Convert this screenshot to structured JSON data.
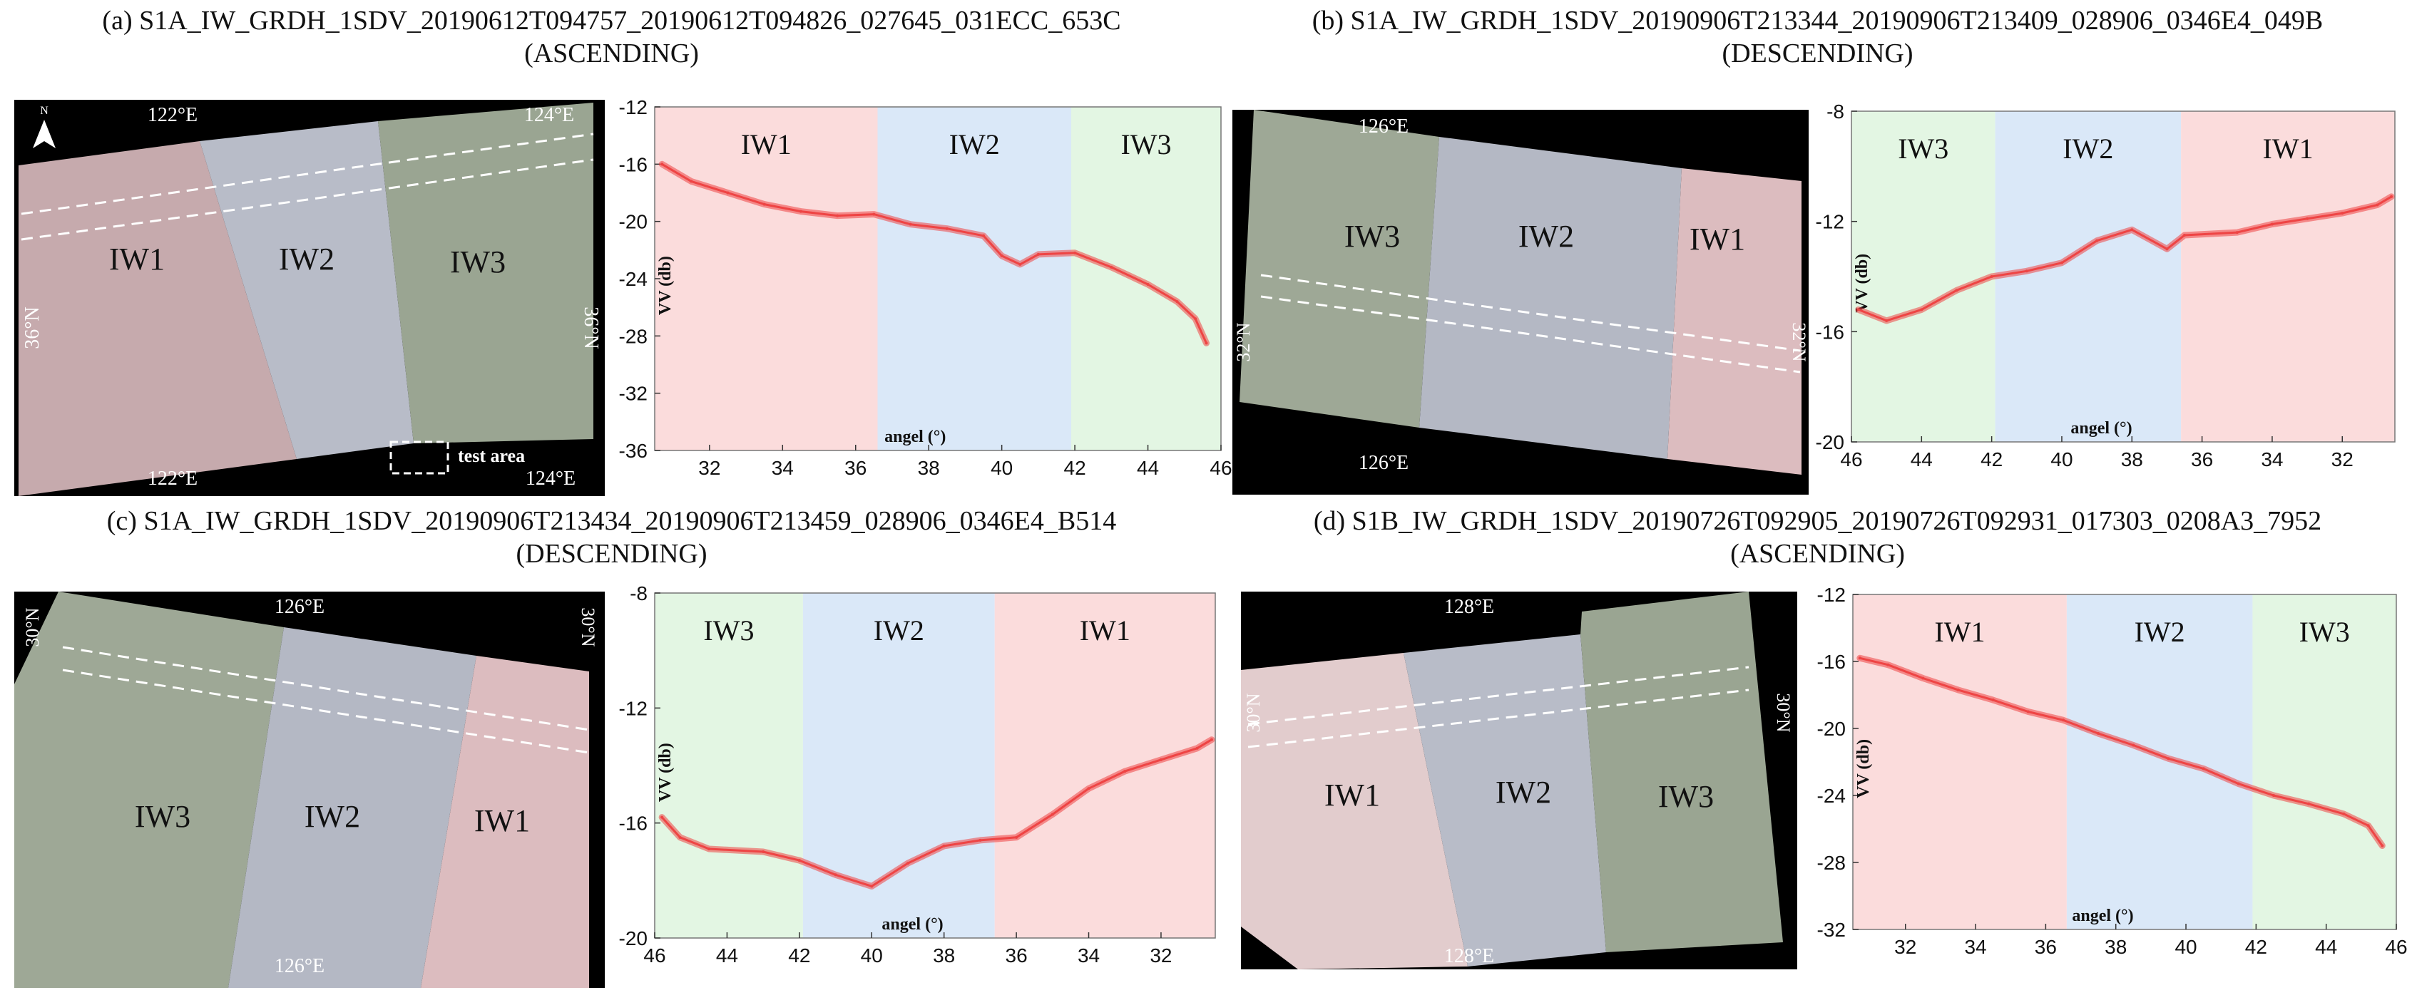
{
  "panels": [
    {
      "id": "a",
      "title_line1": "(a) S1A_IW_GRDH_1SDV_20190612T094757_20190612T094826_027645_031ECC_653C",
      "title_line2": "(ASCENDING)",
      "map": {
        "top_labels": [
          "122°E",
          "124°E"
        ],
        "bottom_labels": [
          "122°E",
          "124°E"
        ],
        "left_label": "36°N",
        "right_label": "36°N",
        "north_label": "N",
        "test_area_label": "test area",
        "swaths": [
          "IW1",
          "IW2",
          "IW3"
        ]
      }
    },
    {
      "id": "b",
      "title_line1": "(b) S1A_IW_GRDH_1SDV_20190906T213344_20190906T213409_028906_0346E4_049B",
      "title_line2": "(DESCENDING)",
      "map": {
        "top_labels": [
          "126°E"
        ],
        "bottom_labels": [
          "126°E"
        ],
        "left_label": "32°N",
        "right_label": "32°N",
        "swaths": [
          "IW3",
          "IW2",
          "IW1"
        ]
      }
    },
    {
      "id": "c",
      "title_line1": "(c) S1A_IW_GRDH_1SDV_20190906T213434_20190906T213459_028906_0346E4_B514",
      "title_line2": "(DESCENDING)",
      "map": {
        "top_labels": [
          "126°E"
        ],
        "bottom_labels": [
          "126°E"
        ],
        "left_label": "30°N",
        "right_label": "30°N",
        "swaths": [
          "IW3",
          "IW2",
          "IW1"
        ]
      }
    },
    {
      "id": "d",
      "title_line1": "(d) S1B_IW_GRDH_1SDV_20190726T092905_20190726T092931_017303_0208A3_7952",
      "title_line2": "(ASCENDING)",
      "map": {
        "top_labels": [
          "128°E"
        ],
        "bottom_labels": [
          "128°E"
        ],
        "left_label": "30°N",
        "right_label": "30°N",
        "swaths": [
          "IW1",
          "IW2",
          "IW3"
        ]
      }
    }
  ],
  "colors": {
    "iw1": "#fbdcdc",
    "iw2": "#dae8f8",
    "iw3": "#e3f6e3",
    "curve": "#ee4444",
    "curve_mid": "#c85a8a"
  },
  "chart_data": [
    {
      "type": "line",
      "panel": "a",
      "xlabel": "angel (°)",
      "ylabel": "VV (db)",
      "xlim": [
        30.5,
        46.0
      ],
      "ylim": [
        -36,
        -12
      ],
      "xticks": [
        32,
        34,
        36,
        38,
        40,
        42,
        44,
        46
      ],
      "yticks": [
        -12,
        -16,
        -20,
        -24,
        -28,
        -32,
        -36
      ],
      "regions": [
        {
          "name": "IW1",
          "from": 30.5,
          "to": 36.6
        },
        {
          "name": "IW2",
          "from": 36.6,
          "to": 41.9
        },
        {
          "name": "IW3",
          "from": 41.9,
          "to": 46.0
        }
      ],
      "x": [
        30.7,
        31.5,
        32.5,
        33.5,
        34.5,
        35.5,
        36.5,
        37.5,
        38.5,
        39.5,
        40.0,
        40.5,
        41.0,
        42.0,
        43.0,
        44.0,
        44.8,
        45.3,
        45.6
      ],
      "y": [
        -16.0,
        -17.2,
        -18.0,
        -18.8,
        -19.3,
        -19.6,
        -19.5,
        -20.2,
        -20.5,
        -21.0,
        -22.4,
        -23.0,
        -22.3,
        -22.2,
        -23.2,
        -24.4,
        -25.6,
        -26.8,
        -28.5
      ]
    },
    {
      "type": "line",
      "panel": "b",
      "xlabel": "angel (°)",
      "ylabel": "VV (db)",
      "xlim": [
        46.0,
        30.5
      ],
      "ylim": [
        -20,
        -8
      ],
      "xticks": [
        46,
        44,
        42,
        40,
        38,
        36,
        34,
        32
      ],
      "yticks": [
        -8,
        -12,
        -16,
        -20
      ],
      "regions": [
        {
          "name": "IW3",
          "from": 46.0,
          "to": 41.9
        },
        {
          "name": "IW2",
          "from": 41.9,
          "to": 36.6
        },
        {
          "name": "IW1",
          "from": 36.6,
          "to": 30.5
        }
      ],
      "x": [
        45.8,
        45.0,
        44.0,
        43.0,
        42.0,
        41.0,
        40.0,
        39.0,
        38.0,
        37.0,
        36.5,
        35.0,
        34.0,
        33.0,
        32.0,
        31.0,
        30.6
      ],
      "y": [
        -15.2,
        -15.6,
        -15.2,
        -14.5,
        -14.0,
        -13.8,
        -13.5,
        -12.7,
        -12.3,
        -13.0,
        -12.5,
        -12.4,
        -12.1,
        -11.9,
        -11.7,
        -11.4,
        -11.1
      ]
    },
    {
      "type": "line",
      "panel": "c",
      "xlabel": "angel (°)",
      "ylabel": "VV (db)",
      "xlim": [
        46.0,
        30.5
      ],
      "ylim": [
        -20,
        -8
      ],
      "xticks": [
        46,
        44,
        42,
        40,
        38,
        36,
        34,
        32
      ],
      "yticks": [
        -8,
        -12,
        -16,
        -20
      ],
      "regions": [
        {
          "name": "IW3",
          "from": 46.0,
          "to": 41.9
        },
        {
          "name": "IW2",
          "from": 41.9,
          "to": 36.6
        },
        {
          "name": "IW1",
          "from": 36.6,
          "to": 30.5
        }
      ],
      "x": [
        45.8,
        45.3,
        44.5,
        43.0,
        42.0,
        41.0,
        40.0,
        39.0,
        38.0,
        37.0,
        36.0,
        35.0,
        34.0,
        33.0,
        32.0,
        31.0,
        30.6
      ],
      "y": [
        -15.8,
        -16.5,
        -16.9,
        -17.0,
        -17.3,
        -17.8,
        -18.2,
        -17.4,
        -16.8,
        -16.6,
        -16.5,
        -15.7,
        -14.8,
        -14.2,
        -13.8,
        -13.4,
        -13.1
      ]
    },
    {
      "type": "line",
      "panel": "d",
      "xlabel": "angel (°)",
      "ylabel": "VV (db)",
      "xlim": [
        30.5,
        46.0
      ],
      "ylim": [
        -32,
        -12
      ],
      "xticks": [
        32,
        34,
        36,
        38,
        40,
        42,
        44,
        46
      ],
      "yticks": [
        -12,
        -16,
        -20,
        -24,
        -28,
        -32
      ],
      "regions": [
        {
          "name": "IW1",
          "from": 30.5,
          "to": 36.6
        },
        {
          "name": "IW2",
          "from": 36.6,
          "to": 41.9
        },
        {
          "name": "IW3",
          "from": 41.9,
          "to": 46.0
        }
      ],
      "x": [
        30.7,
        31.5,
        32.5,
        33.5,
        34.5,
        35.5,
        36.5,
        37.5,
        38.5,
        39.5,
        40.5,
        41.5,
        42.5,
        43.5,
        44.5,
        45.2,
        45.6
      ],
      "y": [
        -15.8,
        -16.2,
        -17.0,
        -17.7,
        -18.3,
        -19.0,
        -19.5,
        -20.3,
        -21.0,
        -21.8,
        -22.4,
        -23.3,
        -24.0,
        -24.5,
        -25.1,
        -25.8,
        -27.0
      ]
    }
  ]
}
